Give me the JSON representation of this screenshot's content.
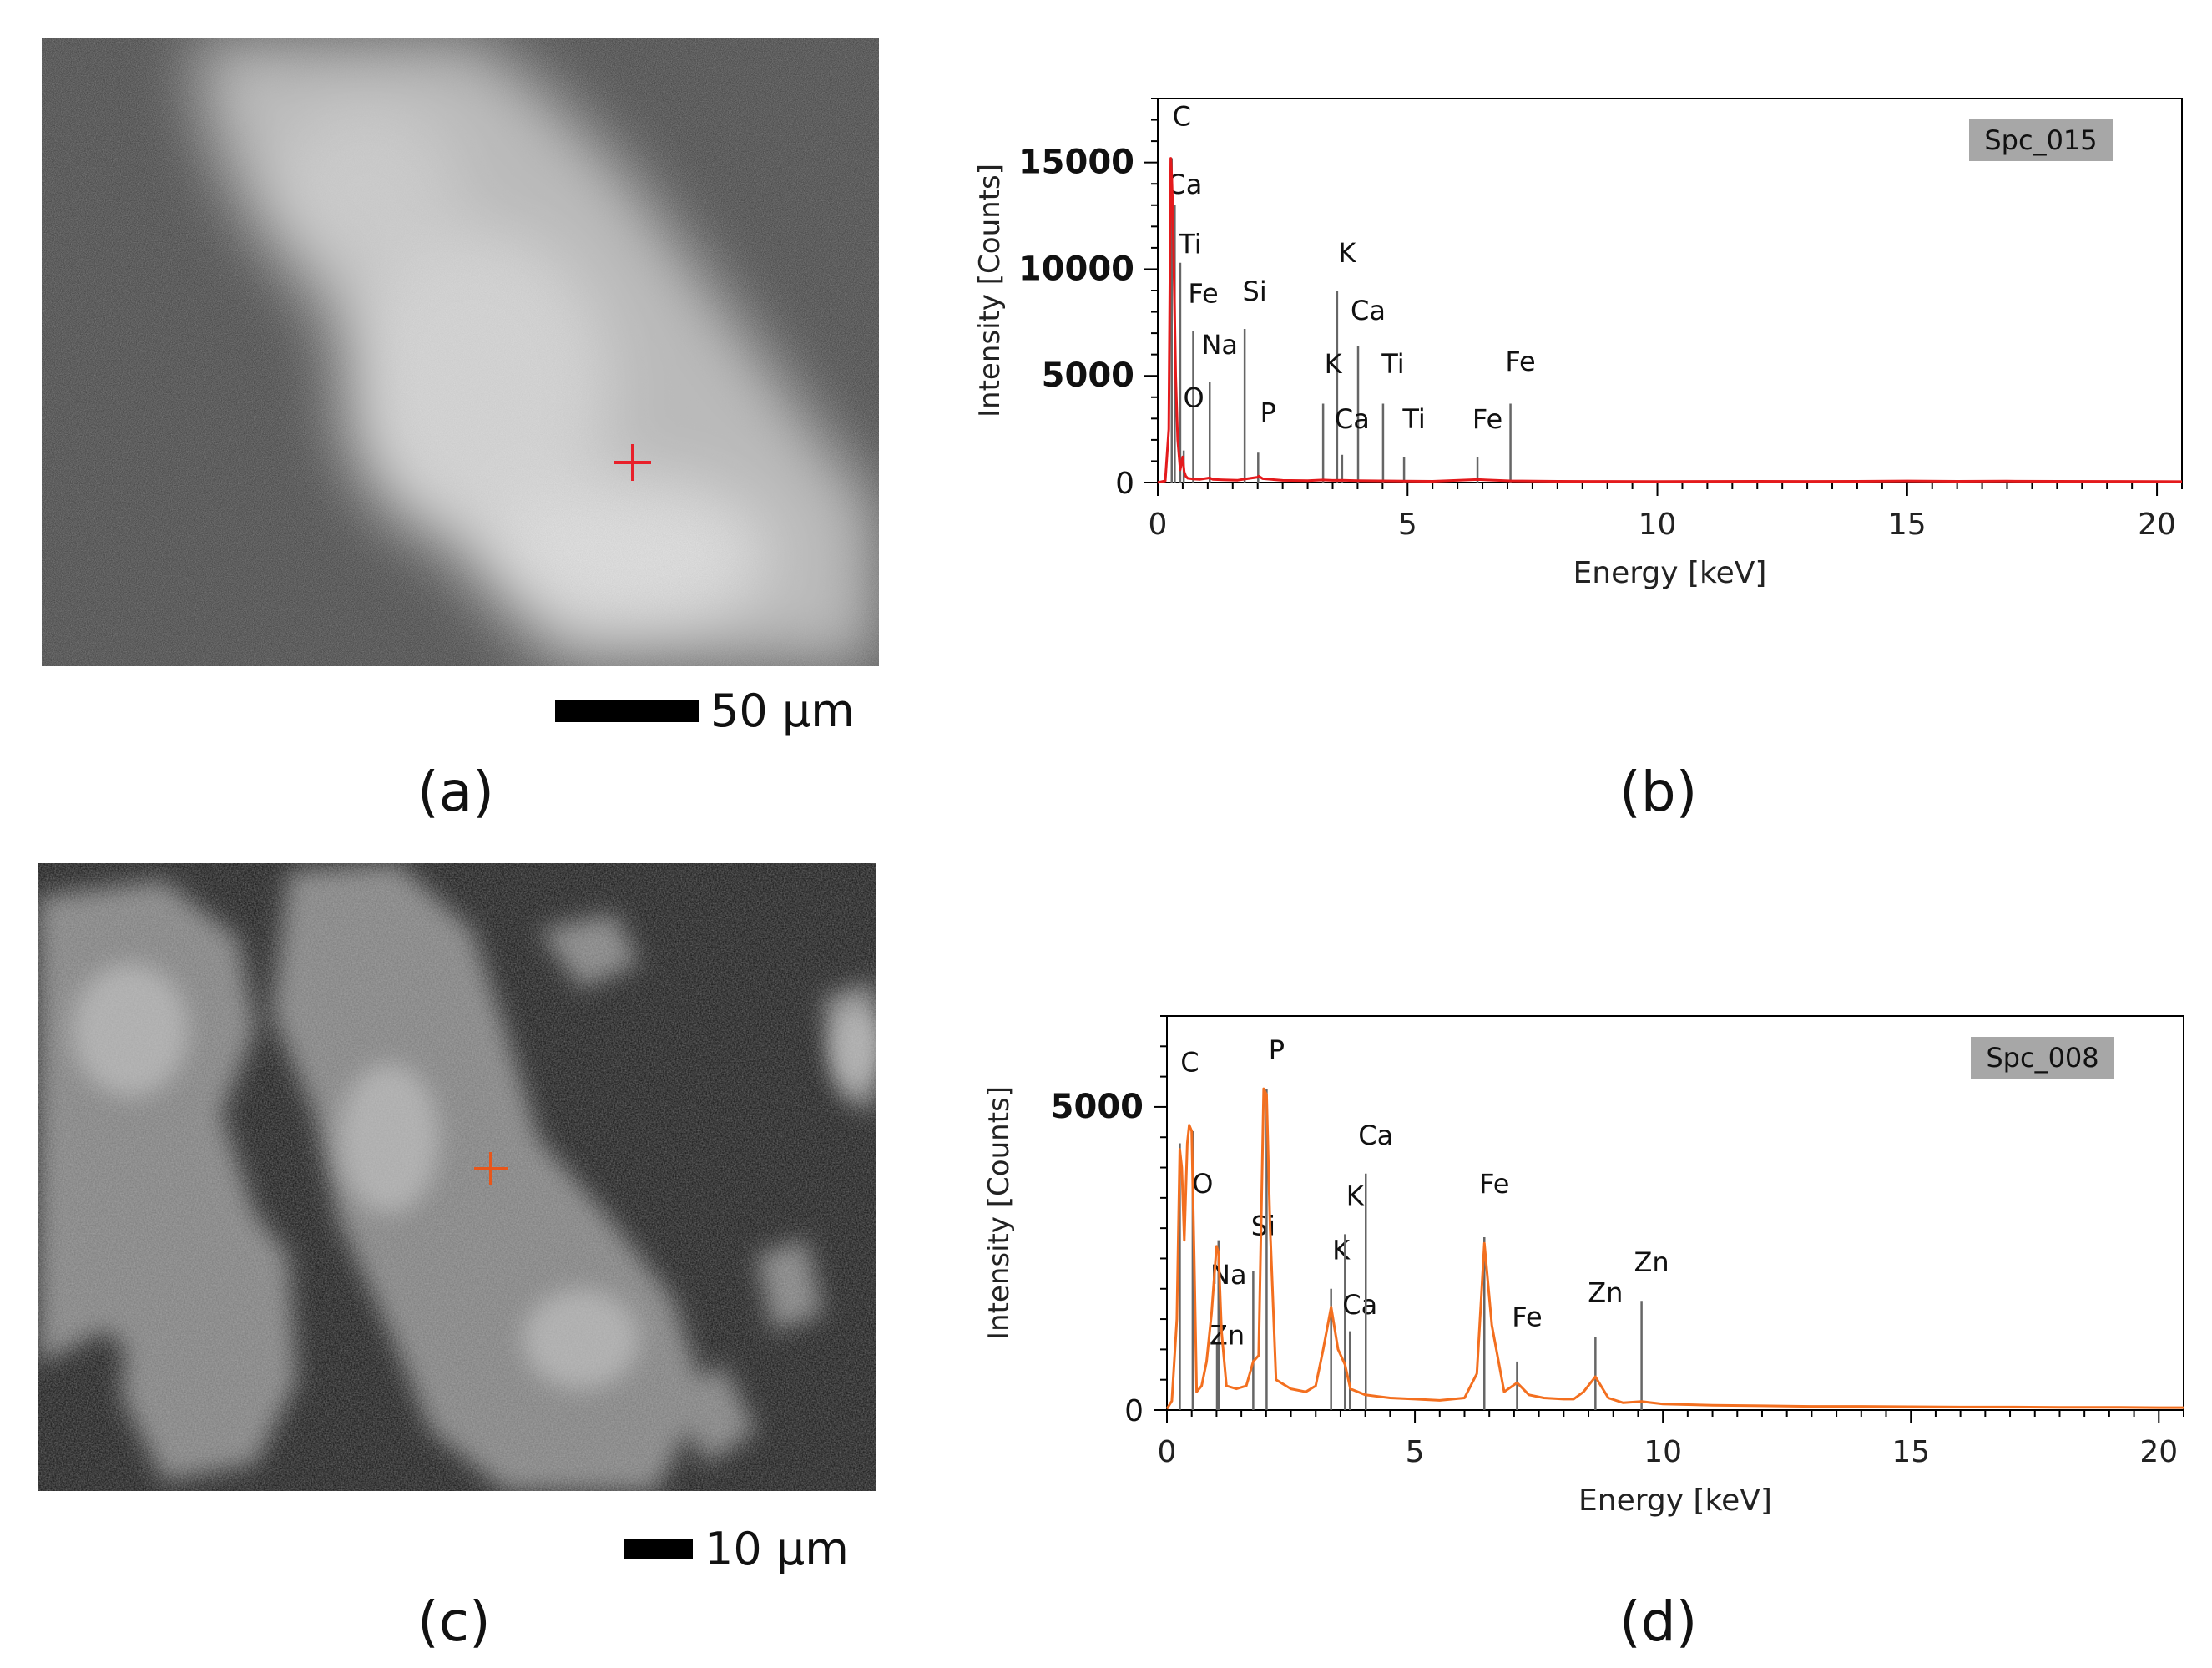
{
  "panels": {
    "a": {
      "label": "(a)",
      "scale_label": "50 μm",
      "marker_color": "#e8202a"
    },
    "b": {
      "label": "(b)"
    },
    "c": {
      "label": "(c)",
      "scale_label": "10 μm",
      "marker_color": "#e8561a"
    },
    "d": {
      "label": "(d)"
    }
  },
  "chart_data": [
    {
      "type": "line",
      "panel": "b",
      "legend": "Spc_015",
      "xlabel": "Energy [keV]",
      "ylabel": "Intensity [Counts]",
      "xlim": [
        0,
        20.5
      ],
      "ylim": [
        0,
        18000
      ],
      "xticks": [
        0,
        5,
        10,
        15,
        20
      ],
      "yticks": [
        0,
        5000,
        10000,
        15000
      ],
      "line_color": "#e41a1c",
      "series": [
        {
          "x": [
            0,
            0.15,
            0.22,
            0.26,
            0.28,
            0.3,
            0.33,
            0.36,
            0.4,
            0.45,
            0.5,
            0.53,
            0.56,
            0.6,
            0.7,
            0.85,
            1.04,
            1.1,
            1.3,
            1.6,
            1.74,
            2.0,
            2.02,
            2.1,
            2.5,
            3.0,
            3.31,
            3.5,
            3.69,
            4.0,
            4.51,
            4.93,
            5.5,
            6.4,
            7.06,
            8.0,
            9.0,
            10.0,
            11.0,
            12.0,
            13.0,
            14.0,
            15.0,
            16.0,
            17.0,
            18.0,
            19.0,
            20.0,
            20.5
          ],
          "y": [
            0,
            80,
            2500,
            15200,
            14300,
            12800,
            9000,
            5000,
            2000,
            600,
            1200,
            500,
            300,
            200,
            170,
            150,
            220,
            150,
            130,
            110,
            160,
            250,
            300,
            180,
            100,
            90,
            120,
            100,
            110,
            90,
            80,
            70,
            60,
            140,
            80,
            60,
            55,
            50,
            55,
            60,
            55,
            60,
            75,
            60,
            65,
            60,
            55,
            50,
            45
          ]
        }
      ],
      "peak_labels": [
        {
          "text": "C",
          "x": 0.28,
          "y": 16500,
          "line_top": 15200
        },
        {
          "text": "Ca",
          "x": 0.34,
          "y": 13300,
          "line_top": 13000
        },
        {
          "text": "Ti",
          "x": 0.45,
          "y": 10500,
          "line_top": 10300
        },
        {
          "text": "Fe",
          "x": 0.71,
          "y": 8200,
          "line_top": 7100
        },
        {
          "text": "Na",
          "x": 1.04,
          "y": 5800,
          "line_top": 4700
        },
        {
          "text": "O",
          "x": 0.52,
          "y": 3300,
          "line_top": 1500
        },
        {
          "text": "Si",
          "x": 1.74,
          "y": 8300,
          "line_top": 7200
        },
        {
          "text": "P",
          "x": 2.01,
          "y": 2600,
          "line_top": 1400
        },
        {
          "text": "K",
          "x": 3.59,
          "y": 10100,
          "line_top": 9000
        },
        {
          "text": "K",
          "x": 3.31,
          "y": 4900,
          "line_top": 3700
        },
        {
          "text": "Ca",
          "x": 4.01,
          "y": 7400,
          "line_top": 6400
        },
        {
          "text": "Ca",
          "x": 3.69,
          "y": 2300,
          "line_top": 1300
        },
        {
          "text": "Ti",
          "x": 4.51,
          "y": 4900,
          "line_top": 3700
        },
        {
          "text": "Ti",
          "x": 4.93,
          "y": 2300,
          "line_top": 1200
        },
        {
          "text": "Fe",
          "x": 6.4,
          "y": 2300,
          "line_top": 1200
        },
        {
          "text": "Fe",
          "x": 7.06,
          "y": 5000,
          "line_top": 3700
        }
      ]
    },
    {
      "type": "line",
      "panel": "d",
      "legend": "Spc_008",
      "xlabel": "Energy [keV]",
      "ylabel": "Intensity [Counts]",
      "xlim": [
        0,
        20.5
      ],
      "ylim": [
        0,
        6500
      ],
      "xticks": [
        0,
        5,
        10,
        15,
        20
      ],
      "yticks": [
        0,
        5000
      ],
      "line_color": "#f36f1f",
      "series": [
        {
          "x": [
            0,
            0.1,
            0.2,
            0.26,
            0.3,
            0.35,
            0.41,
            0.45,
            0.5,
            0.55,
            0.6,
            0.7,
            0.8,
            0.9,
            1.0,
            1.04,
            1.1,
            1.2,
            1.4,
            1.6,
            1.74,
            1.85,
            1.95,
            2.01,
            2.08,
            2.2,
            2.5,
            2.8,
            3.0,
            3.15,
            3.31,
            3.45,
            3.59,
            3.7,
            4.0,
            4.5,
            5.0,
            5.5,
            6.0,
            6.25,
            6.4,
            6.55,
            6.8,
            7.06,
            7.3,
            7.6,
            8.0,
            8.2,
            8.4,
            8.64,
            8.9,
            9.2,
            9.57,
            10.0,
            11.0,
            12.0,
            13.0,
            14.0,
            15.0,
            16.0,
            17.0,
            18.0,
            19.0,
            20.0,
            20.5
          ],
          "y": [
            20,
            150,
            1500,
            4300,
            4000,
            2800,
            4400,
            4700,
            4600,
            2500,
            300,
            400,
            800,
            1600,
            2700,
            2600,
            1300,
            400,
            350,
            400,
            800,
            900,
            5300,
            5200,
            3000,
            500,
            350,
            300,
            400,
            1000,
            1700,
            1000,
            750,
            350,
            250,
            200,
            180,
            160,
            200,
            600,
            2750,
            1400,
            300,
            450,
            250,
            200,
            180,
            180,
            300,
            550,
            200,
            120,
            140,
            100,
            80,
            70,
            60,
            60,
            55,
            50,
            50,
            45,
            45,
            40,
            40
          ]
        }
      ],
      "peak_labels": [
        {
          "text": "C",
          "x": 0.26,
          "y": 5500,
          "line_top": 4400
        },
        {
          "text": "O",
          "x": 0.52,
          "y": 3500,
          "line_top": 4600
        },
        {
          "text": "Na",
          "x": 1.04,
          "y": 2000,
          "line_top": 2800
        },
        {
          "text": "Zn",
          "x": 1.01,
          "y": 1000,
          "line_top": 1100
        },
        {
          "text": "Si",
          "x": 1.74,
          "y": 2800,
          "line_top": 2300
        },
        {
          "text": "P",
          "x": 2.01,
          "y": 5700,
          "line_top": 5300
        },
        {
          "text": "K",
          "x": 3.31,
          "y": 2400,
          "line_top": 2000
        },
        {
          "text": "K",
          "x": 3.59,
          "y": 3300,
          "line_top": 2900
        },
        {
          "text": "Ca",
          "x": 3.69,
          "y": 1500,
          "line_top": 1300
        },
        {
          "text": "Ca",
          "x": 4.01,
          "y": 4300,
          "line_top": 3900
        },
        {
          "text": "Fe",
          "x": 6.4,
          "y": 3500,
          "line_top": 2850
        },
        {
          "text": "Fe",
          "x": 7.06,
          "y": 1300,
          "line_top": 800
        },
        {
          "text": "Zn",
          "x": 8.64,
          "y": 1700,
          "line_top": 1200
        },
        {
          "text": "Zn",
          "x": 9.57,
          "y": 2200,
          "line_top": 1800
        }
      ]
    }
  ]
}
